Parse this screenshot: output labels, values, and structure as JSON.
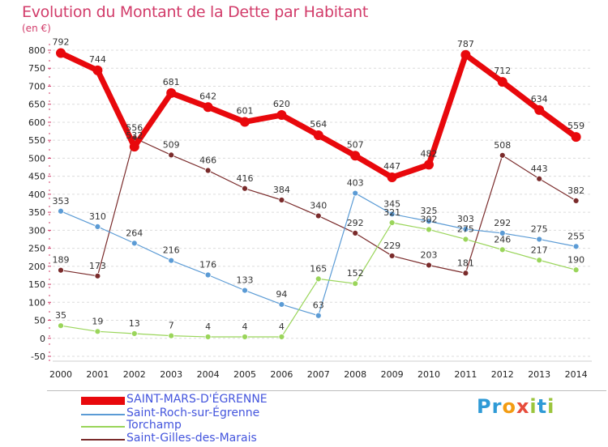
{
  "title": "Evolution du Montant de la Dette par Habitant",
  "unit": "(en €)",
  "logo": {
    "letters": [
      "P",
      "r",
      "o",
      "x",
      "i",
      "t",
      "i"
    ],
    "colors": [
      "#2f9ad6",
      "#2f9ad6",
      "#f39c12",
      "#e74c3c",
      "#9bc53d",
      "#2f9ad6",
      "#9bc53d"
    ]
  },
  "chart_data": {
    "type": "line",
    "title": "Evolution du Montant de la Dette par Habitant",
    "ylabel": "(en €)",
    "xlabel": "",
    "x": [
      "2000",
      "2001",
      "2002",
      "2003",
      "2004",
      "2005",
      "2006",
      "2007",
      "2008",
      "2009",
      "2010",
      "2011",
      "2012",
      "2013",
      "2014"
    ],
    "ylim": [
      -50,
      800
    ],
    "yticks": [
      -50,
      0,
      50,
      100,
      150,
      200,
      250,
      300,
      350,
      400,
      450,
      500,
      550,
      600,
      650,
      700,
      750,
      800
    ],
    "grid": "horizontal dashed",
    "legend_position": "bottom",
    "series": [
      {
        "name": "SAINT-MARS-D'ÉGRENNE",
        "color": "#e8080c",
        "values": [
          792,
          744,
          532,
          681,
          642,
          601,
          620,
          564,
          507,
          447,
          482,
          787,
          712,
          634,
          559
        ],
        "labels": [
          "792",
          "744",
          "532",
          "681",
          "642",
          "601",
          "620",
          "564",
          "507",
          "447",
          "482",
          "787",
          "712",
          "634",
          "559"
        ]
      },
      {
        "name": "Saint-Roch-sur-Égrenne",
        "color": "#5b9bd5",
        "values": [
          353,
          310,
          264,
          216,
          176,
          133,
          94,
          63,
          403,
          345,
          325,
          303,
          292,
          275,
          255
        ],
        "labels": [
          "353",
          "310",
          "264",
          "216",
          "176",
          "133",
          "94",
          "63",
          "403",
          "345",
          "325",
          "303",
          "292",
          "275",
          "255"
        ]
      },
      {
        "name": "Torchamp",
        "color": "#9ad55a",
        "values": [
          35,
          19,
          13,
          7,
          4,
          4,
          4,
          165,
          152,
          321,
          302,
          275,
          246,
          217,
          190
        ],
        "labels": [
          "35",
          "19",
          "13",
          "7",
          "4",
          "4",
          "4",
          "165",
          "152",
          "321",
          "302",
          "275",
          "246",
          "217",
          "190"
        ]
      },
      {
        "name": "Saint-Gilles-des-Marais",
        "color": "#7a2b2b",
        "values": [
          189,
          173,
          556,
          509,
          466,
          416,
          384,
          340,
          292,
          229,
          203,
          181,
          508,
          443,
          382
        ],
        "labels": [
          "189",
          "173",
          "556",
          "509",
          "466",
          "416",
          "384",
          "340",
          "292",
          "229",
          "203",
          "181",
          "508",
          "443",
          "382"
        ]
      }
    ]
  }
}
